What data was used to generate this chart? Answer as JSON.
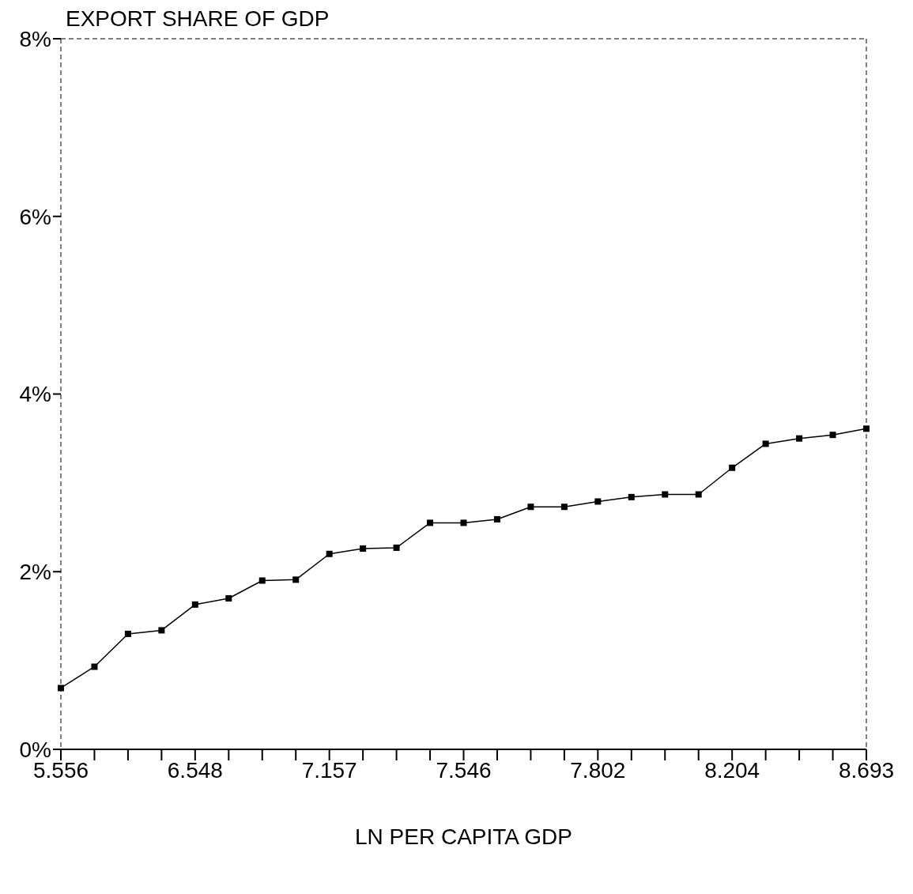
{
  "chart_data": {
    "type": "line",
    "ylabel": "EXPORT SHARE OF GDP",
    "xlabel": "LN PER CAPITA GDP",
    "categories": [
      "5.556",
      null,
      null,
      null,
      "6.548",
      null,
      null,
      null,
      "7.157",
      null,
      null,
      null,
      "7.546",
      null,
      null,
      null,
      "7.802",
      null,
      null,
      null,
      "8.204",
      null,
      null,
      null,
      "8.693"
    ],
    "series": [
      {
        "color": "#000000",
        "values": [
          0.69,
          0.93,
          1.3,
          1.34,
          1.63,
          1.7,
          1.9,
          1.91,
          2.2,
          2.26,
          2.27,
          2.55,
          2.55,
          2.59,
          2.73,
          2.73,
          2.79,
          2.84,
          2.87,
          2.87,
          3.17,
          3.44,
          3.5,
          3.54,
          3.61
        ]
      }
    ],
    "ylim": [
      0,
      8
    ],
    "yticks": [
      {
        "value": 0,
        "label": "0%"
      },
      {
        "value": 2,
        "label": "2%"
      },
      {
        "value": 4,
        "label": "4%"
      },
      {
        "value": 6,
        "label": "6%"
      },
      {
        "value": 8,
        "label": "8%"
      }
    ],
    "grid": false,
    "legend": false,
    "marker": "square",
    "line_style": "solid"
  }
}
